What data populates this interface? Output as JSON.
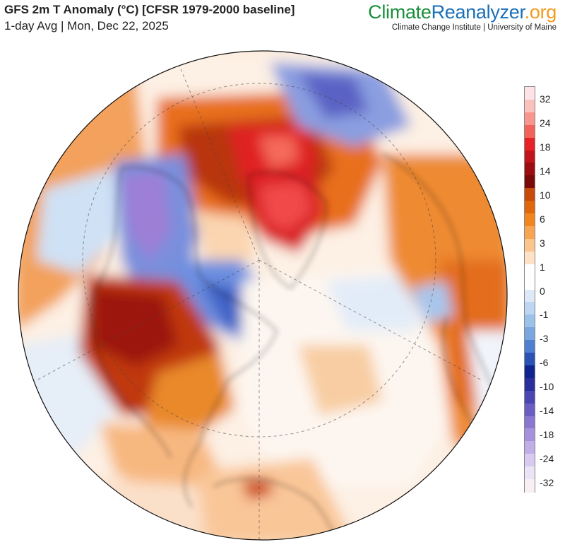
{
  "header": {
    "title": "GFS 2m T Anomaly (°C) [CFSR 1979-2000 baseline]",
    "subtitle": "1-day Avg | Mon, Dec 22, 2025"
  },
  "brand": {
    "part1": "Climate",
    "part2": "Reanalyzer",
    "part3": ".org",
    "affiliation": "Climate Change Institute | University of Maine",
    "colors": {
      "climate": "#1a8f3c",
      "reanalyzer": "#1a6fb8",
      "org": "#f39a1e"
    }
  },
  "map": {
    "projection": "orthographic, north polar view",
    "colors": {
      "ocean_neutral": "#ffffff",
      "land_outline": "#111111"
    }
  },
  "legend": {
    "labels": [
      "32",
      "24",
      "18",
      "14",
      "10",
      "6",
      "3",
      "1",
      "0",
      "-1",
      "-3",
      "-6",
      "-10",
      "-14",
      "-18",
      "-24",
      "-32"
    ],
    "colors": [
      "#fde3e6",
      "#fbc2bd",
      "#f8958d",
      "#f2645a",
      "#e62226",
      "#c2141b",
      "#9c0d12",
      "#7a0909",
      "#c84a0a",
      "#e0670c",
      "#f2861e",
      "#f7a552",
      "#fbc58e",
      "#fde2c8",
      "#ffffff",
      "#ffffff",
      "#dde9f7",
      "#bdd6f2",
      "#9cc2ec",
      "#7aa6e0",
      "#4f7fd0",
      "#2a52b4",
      "#0f248f",
      "#2a2f9a",
      "#4a46b2",
      "#6b5ec2",
      "#8a78d0",
      "#a692dc",
      "#c0aee6",
      "#d8cbef",
      "#ebe3f6",
      "#f8eef4"
    ]
  }
}
